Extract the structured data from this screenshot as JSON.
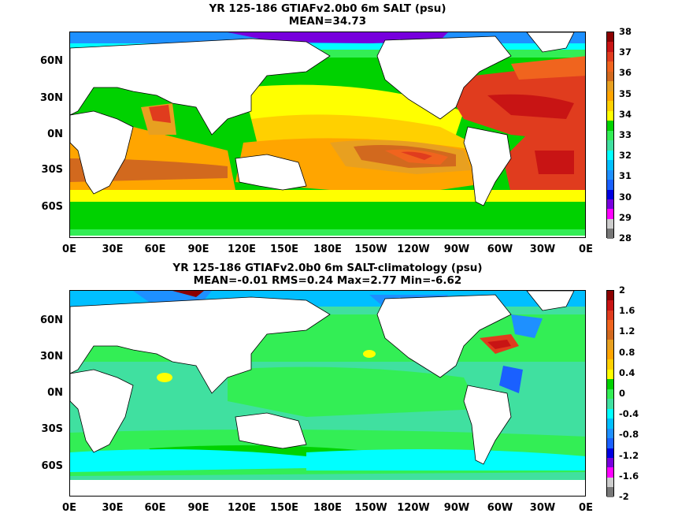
{
  "panels": [
    {
      "title_line1": "YR 125-186 GTIAFv2.0b0 6m SALT (psu)",
      "title_line2": "MEAN=34.73",
      "colorbar_labels": [
        "38",
        "37",
        "36",
        "35",
        "34",
        "33",
        "32",
        "31",
        "30",
        "29",
        "28"
      ],
      "colorbar_colors": [
        "#8b0000",
        "#c81414",
        "#e03c1e",
        "#f0641e",
        "#d2691e",
        "#e8a020",
        "#ffa500",
        "#ffd000",
        "#ffff00",
        "#00d200",
        "#33ee55",
        "#40e0a0",
        "#00ffff",
        "#00bfff",
        "#1e90ff",
        "#1a60ff",
        "#0000e0",
        "#7700dd",
        "#ff00ff",
        "#cccccc",
        "#777777"
      ]
    },
    {
      "title_line1": "YR 125-186 GTIAFv2.0b0 6m SALT-climatology (psu)",
      "title_line2": "MEAN=-0.01   RMS=0.24   Max=2.77   Min=-6.62",
      "colorbar_labels": [
        "2",
        "1.6",
        "1.2",
        "0.8",
        "0.4",
        "0",
        "-0.4",
        "-0.8",
        "-1.2",
        "-1.6",
        "-2"
      ],
      "colorbar_colors": [
        "#8b0000",
        "#c81414",
        "#e03c1e",
        "#f0641e",
        "#d2691e",
        "#e8a020",
        "#ffa500",
        "#ffd000",
        "#ffff00",
        "#00d200",
        "#33ee55",
        "#40e0a0",
        "#00ffff",
        "#00bfff",
        "#1e90ff",
        "#1a60ff",
        "#0000e0",
        "#7700dd",
        "#ff00ff",
        "#cccccc",
        "#777777"
      ]
    }
  ],
  "lat_labels": [
    "60N",
    "30N",
    "0N",
    "30S",
    "60S"
  ],
  "lon_labels": [
    "0E",
    "30E",
    "60E",
    "90E",
    "120E",
    "150E",
    "180E",
    "150W",
    "120W",
    "90W",
    "60W",
    "30W",
    "0E"
  ]
}
